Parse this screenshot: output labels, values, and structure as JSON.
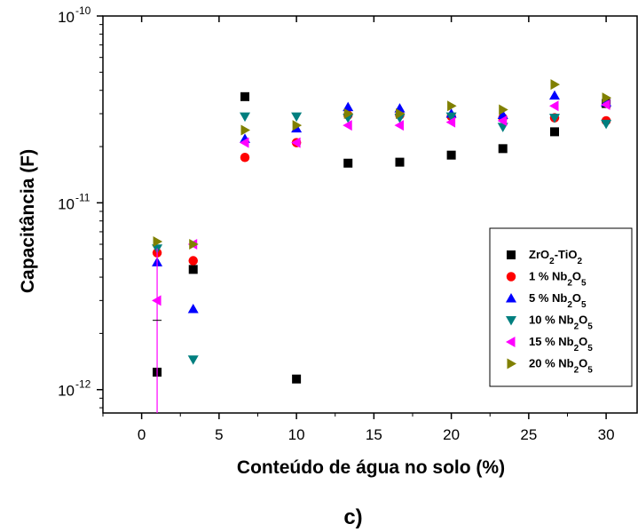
{
  "chart_data": {
    "type": "scatter",
    "xlabel": "Conteúdo de água no solo (%)",
    "ylabel": "Capacitância (F)",
    "caption": "c)",
    "xlim": [
      -2.5,
      32
    ],
    "ylim": [
      7.5e-13,
      1e-10
    ],
    "yscale": "log",
    "x_ticks": [
      0,
      5,
      10,
      15,
      20,
      25,
      30
    ],
    "y_ticks": [
      {
        "value": 1e-12,
        "base": "10",
        "exp": "-12"
      },
      {
        "value": 1e-11,
        "base": "10",
        "exp": "-11"
      },
      {
        "value": 1e-10,
        "base": "10",
        "exp": "-10"
      }
    ],
    "legend_position": "right",
    "series": [
      {
        "label_main": "ZrO",
        "label_parts": [
          [
            "ZrO",
            ""
          ],
          [
            "2",
            "sub"
          ],
          [
            "-TiO",
            ""
          ],
          [
            "2",
            "sub"
          ]
        ],
        "marker": "square",
        "color": "#000000",
        "x": [
          1.0,
          3.33,
          6.67,
          10.0,
          13.33,
          16.67,
          20.0,
          23.33,
          26.67,
          30.0
        ],
        "y": [
          1.24e-12,
          4.4e-12,
          3.7e-11,
          1.14e-12,
          1.63e-11,
          1.65e-11,
          1.8e-11,
          1.95e-11,
          2.4e-11,
          3.4e-11
        ]
      },
      {
        "label_parts": [
          [
            "1 % Nb",
            ""
          ],
          [
            "2",
            "sub"
          ],
          [
            "O",
            ""
          ],
          [
            "5",
            "sub"
          ]
        ],
        "marker": "circle",
        "color": "#ff0000",
        "x": [
          1.0,
          3.33,
          6.67,
          10.0,
          13.33,
          16.67,
          20.0,
          23.33,
          26.67,
          30.0
        ],
        "y": [
          5.4e-12,
          4.9e-12,
          1.75e-11,
          2.1e-11,
          2.95e-11,
          2.95e-11,
          2.9e-11,
          2.85e-11,
          2.85e-11,
          2.75e-11
        ]
      },
      {
        "label_parts": [
          [
            "5 % Nb",
            ""
          ],
          [
            "2",
            "sub"
          ],
          [
            "O",
            ""
          ],
          [
            "5",
            "sub"
          ]
        ],
        "marker": "triangle-up",
        "color": "#0000ff",
        "x": [
          1.0,
          3.33,
          6.67,
          10.0,
          13.33,
          16.67,
          20.0,
          23.33,
          26.67,
          30.0
        ],
        "y": [
          4.8e-12,
          2.7e-12,
          2.2e-11,
          2.5e-11,
          3.25e-11,
          3.2e-11,
          3e-11,
          2.95e-11,
          3.75e-11,
          3.45e-11
        ]
      },
      {
        "label_parts": [
          [
            "10 % Nb",
            ""
          ],
          [
            "2",
            "sub"
          ],
          [
            "O",
            ""
          ],
          [
            "5",
            "sub"
          ]
        ],
        "marker": "triangle-down",
        "color": "#007f7f",
        "x": [
          1.0,
          3.33,
          6.67,
          10.0,
          13.33,
          16.67,
          20.0,
          23.33,
          26.67,
          30.0
        ],
        "y": [
          5.7e-12,
          1.45e-12,
          2.9e-11,
          2.9e-11,
          2.85e-11,
          2.85e-11,
          2.9e-11,
          2.55e-11,
          2.85e-11,
          2.65e-11
        ]
      },
      {
        "label_parts": [
          [
            "15 % Nb",
            ""
          ],
          [
            "2",
            "sub"
          ],
          [
            "O",
            ""
          ],
          [
            "5",
            "sub"
          ]
        ],
        "marker": "triangle-left",
        "color": "#ff00ff",
        "x": [
          1.0,
          3.33,
          6.67,
          10.0,
          13.33,
          16.67,
          20.0,
          23.33,
          26.67,
          30.0
        ],
        "y": [
          3e-12,
          6e-12,
          2.1e-11,
          2.1e-11,
          2.6e-11,
          2.6e-11,
          2.7e-11,
          2.75e-11,
          3.3e-11,
          3.35e-11
        ],
        "error_bar": {
          "x": 1.0,
          "y_low": 7.5e-13,
          "y_high": 5.7e-12,
          "cap_y": 2.35e-12
        }
      },
      {
        "label_parts": [
          [
            "20 % Nb",
            ""
          ],
          [
            "2",
            "sub"
          ],
          [
            "O",
            ""
          ],
          [
            "5",
            "sub"
          ]
        ],
        "marker": "triangle-right",
        "color": "#808000",
        "x": [
          1.0,
          3.33,
          6.67,
          10.0,
          13.33,
          16.67,
          20.0,
          23.33,
          26.67,
          30.0
        ],
        "y": [
          6.2e-12,
          6e-12,
          2.45e-11,
          2.6e-11,
          3e-11,
          3e-11,
          3.3e-11,
          3.15e-11,
          4.3e-11,
          3.65e-11
        ]
      }
    ]
  }
}
